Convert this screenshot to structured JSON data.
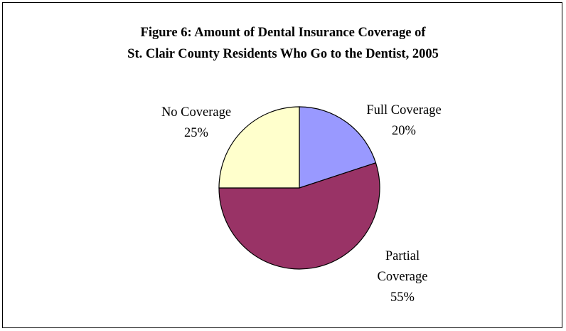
{
  "chart_data": {
    "type": "pie",
    "title": [
      "Figure 6:  Amount of Dental Insurance Coverage of",
      "St. Clair County Residents Who Go to the Dentist, 2005"
    ],
    "slices": [
      {
        "label": [
          "Full Coverage"
        ],
        "value": 20,
        "value_label": "20%",
        "color": "#9999ff"
      },
      {
        "label": [
          "Partial",
          "Coverage"
        ],
        "value": 55,
        "value_label": "55%",
        "color": "#993366"
      },
      {
        "label": [
          "No Coverage"
        ],
        "value": 25,
        "value_label": "25%",
        "color": "#ffffcc"
      }
    ],
    "start_angle_deg": 0,
    "direction": "clockwise",
    "legend": "none"
  }
}
